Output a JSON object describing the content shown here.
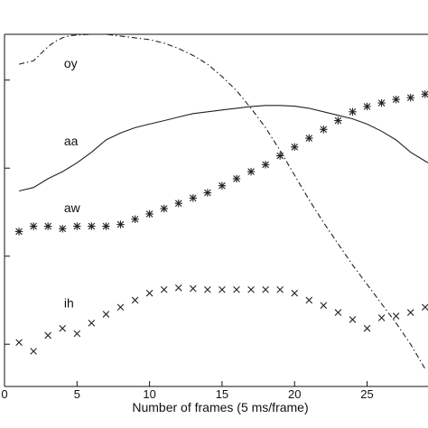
{
  "chart_data": {
    "type": "line",
    "title": "",
    "xlabel": "Number of frames (5 ms/frame)",
    "ylabel": "",
    "xlim": [
      0,
      29.2
    ],
    "ylim": [
      0,
      100
    ],
    "x_ticks": [
      0,
      5,
      10,
      15,
      20,
      25
    ],
    "x_tick_labels": [
      "0",
      "5",
      "10",
      "15",
      "20",
      "25"
    ],
    "y_ticks": [
      12,
      37,
      62,
      87
    ],
    "grid": false,
    "legend": "none",
    "series": [
      {
        "name": "oy",
        "style": "dashdot",
        "color": "#222222",
        "label_at": [
          4.1,
          90.5
        ],
        "x": [
          1,
          1.5,
          2,
          2.5,
          3,
          3.5,
          4,
          4.5,
          5,
          6,
          7,
          8,
          9,
          10,
          11,
          12,
          13,
          14,
          15,
          16,
          17,
          18,
          19,
          20,
          21,
          22,
          23,
          24,
          25,
          26,
          27,
          28,
          29
        ],
        "y": [
          91.5,
          92,
          92.5,
          94.5,
          96.5,
          98,
          99,
          99.6,
          99.8,
          100,
          100,
          99.5,
          99,
          98.5,
          97.5,
          96,
          94,
          91.5,
          88,
          84,
          79,
          73.5,
          67,
          60,
          53,
          46.5,
          40.5,
          34.5,
          29,
          23.5,
          18,
          12,
          5
        ]
      },
      {
        "name": "aa",
        "style": "solid",
        "color": "#222222",
        "label_at": [
          4.1,
          68.5
        ],
        "x": [
          1,
          2,
          3,
          4,
          5,
          6,
          7,
          8,
          9,
          10,
          11,
          12,
          13,
          14,
          15,
          16,
          17,
          18,
          19,
          20,
          21,
          22,
          23,
          24,
          25,
          26,
          27,
          28,
          29,
          29.2
        ],
        "y": [
          55.5,
          56.5,
          59,
          61,
          63.5,
          66.5,
          70,
          72,
          73.5,
          74.5,
          75.5,
          76.5,
          77.5,
          78,
          78.5,
          79,
          79.5,
          79.8,
          79.8,
          79.6,
          79,
          78,
          77,
          76,
          74.5,
          72.5,
          70,
          66.5,
          64,
          63.5
        ]
      },
      {
        "name": "aw",
        "style": "star",
        "color": "#222222",
        "label_at": [
          4.1,
          49.5
        ],
        "x": [
          1,
          2,
          3,
          4,
          5,
          6,
          7,
          8,
          9,
          10,
          11,
          12,
          13,
          14,
          15,
          16,
          17,
          18,
          19,
          20,
          21,
          22,
          23,
          24,
          25,
          26,
          27,
          28,
          29
        ],
        "y": [
          44,
          45.5,
          45.5,
          44.8,
          45.5,
          45.5,
          45.5,
          46,
          47.5,
          49,
          50.5,
          52,
          53.5,
          55,
          57,
          59,
          61,
          63,
          65.5,
          68,
          70.5,
          73,
          75.5,
          78,
          79.5,
          80.5,
          81.5,
          82,
          83
        ]
      },
      {
        "name": "ih",
        "style": "cross",
        "color": "#222222",
        "label_at": [
          4.1,
          22.5
        ],
        "x": [
          1,
          2,
          3,
          4,
          5,
          6,
          7,
          8,
          9,
          10,
          11,
          12,
          13,
          14,
          15,
          16,
          17,
          18,
          19,
          20,
          21,
          22,
          23,
          24,
          25,
          26,
          27,
          28,
          29
        ],
        "y": [
          12.5,
          10,
          14.5,
          16.5,
          15,
          18,
          20.5,
          22.5,
          24.5,
          26.5,
          27.5,
          28,
          27.8,
          27.5,
          27.5,
          27.5,
          27.5,
          27.5,
          27.5,
          26.5,
          24.5,
          23,
          21,
          19,
          16.5,
          19.5,
          20,
          21,
          22.5
        ]
      }
    ]
  }
}
